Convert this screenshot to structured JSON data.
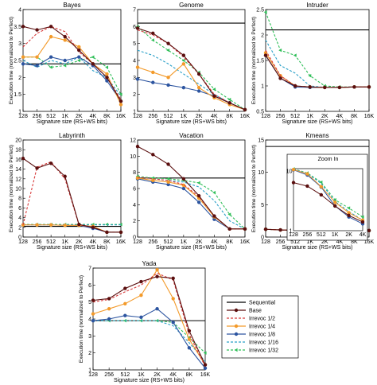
{
  "figure": {
    "x_ticks": [
      "128",
      "256",
      "512",
      "1K",
      "2K",
      "4K",
      "8K",
      "16K"
    ],
    "inset_x_ticks": [
      "128",
      "256",
      "512",
      "1K",
      "2K",
      "4K"
    ],
    "inset_title": "Zoom In",
    "legend": [
      "Sequential",
      "Base",
      "Irrevoc 1/2",
      "Irrevoc 1/4",
      "Irrevoc 1/8",
      "Irrevoc 1/16",
      "Irrevoc 1/32"
    ],
    "colors": {
      "Sequential": "#000000",
      "Base": "#5a0f0f",
      "Irrevoc 1/2": "#d83a3a",
      "Irrevoc 1/4": "#f39a2a",
      "Irrevoc 1/8": "#2d55a0",
      "Irrevoc 1/16": "#2aa0c8",
      "Irrevoc 1/32": "#2fbf58"
    }
  },
  "chart_data": [
    {
      "type": "line",
      "title": "Bayes",
      "xlabel": "Signature size (RS+WS bits)",
      "ylabel": "Execution time (normalized to Perfect)",
      "x": [
        "128",
        "256",
        "512",
        "1K",
        "2K",
        "4K",
        "8K",
        "16K"
      ],
      "ylim": [
        1,
        4
      ],
      "y_ticks": [
        "1",
        "1.5",
        "2",
        "2.5",
        "3",
        "3.5",
        "4"
      ],
      "sequential": 2.4,
      "series": [
        {
          "name": "Base",
          "values": [
            3.5,
            3.4,
            3.5,
            3.2,
            2.8,
            2.4,
            2.0,
            1.3
          ]
        },
        {
          "name": "Irrevoc 1/2",
          "values": [
            2.9,
            3.3,
            3.5,
            3.35,
            2.75,
            2.4,
            2.0,
            1.35
          ]
        },
        {
          "name": "Irrevoc 1/4",
          "values": [
            2.6,
            2.6,
            3.2,
            3.1,
            2.9,
            2.4,
            2.1,
            1.2
          ]
        },
        {
          "name": "Irrevoc 1/8",
          "values": [
            2.4,
            2.35,
            2.6,
            2.5,
            2.6,
            2.35,
            1.9,
            1.3
          ]
        },
        {
          "name": "Irrevoc 1/16",
          "values": [
            2.5,
            2.3,
            2.5,
            2.4,
            2.6,
            2.2,
            2.0,
            1.45
          ]
        },
        {
          "name": "Irrevoc 1/32",
          "values": [
            2.6,
            2.6,
            2.3,
            2.35,
            2.5,
            2.6,
            2.3,
            1.5
          ]
        }
      ]
    },
    {
      "type": "line",
      "title": "Genome",
      "xlabel": "Signature size (RS+WS bits)",
      "ylabel": "",
      "x": [
        "128",
        "256",
        "512",
        "1K",
        "2K",
        "4K",
        "8K",
        "16K"
      ],
      "ylim": [
        1,
        7
      ],
      "y_ticks": [
        "1",
        "2",
        "3",
        "4",
        "5",
        "6",
        "7"
      ],
      "sequential": 6.2,
      "series": [
        {
          "name": "Base",
          "values": [
            5.9,
            5.6,
            5.0,
            4.3,
            3.2,
            1.9,
            1.5,
            1.1
          ]
        },
        {
          "name": "Irrevoc 1/2",
          "values": [
            5.8,
            5.5,
            5.0,
            4.2,
            3.2,
            2.0,
            1.5,
            1.1
          ]
        },
        {
          "name": "Irrevoc 1/4",
          "values": [
            3.6,
            3.3,
            3.0,
            3.8,
            2.4,
            1.8,
            1.4,
            1.1
          ]
        },
        {
          "name": "Irrevoc 1/8",
          "values": [
            2.9,
            2.7,
            2.55,
            2.4,
            2.2,
            1.9,
            1.5,
            1.1
          ]
        },
        {
          "name": "Irrevoc 1/16",
          "values": [
            4.6,
            4.3,
            3.8,
            3.2,
            2.6,
            2.0,
            1.5,
            1.1
          ]
        },
        {
          "name": "Irrevoc 1/32",
          "values": [
            6.0,
            5.2,
            4.6,
            4.0,
            3.3,
            2.3,
            1.7,
            1.1
          ]
        }
      ]
    },
    {
      "type": "line",
      "title": "Intruder",
      "xlabel": "Signature size (RS+WS bits)",
      "ylabel": "Execution time (normalized to Perfect)",
      "x": [
        "128",
        "256",
        "512",
        "1K",
        "2K",
        "4K",
        "8K",
        "16K"
      ],
      "ylim": [
        0.5,
        2.5
      ],
      "y_ticks": [
        "0.5",
        "1",
        "1.5",
        "2",
        "2.5"
      ],
      "sequential": 2.1,
      "series": [
        {
          "name": "Base",
          "values": [
            1.6,
            1.15,
            1.0,
            0.98,
            0.97,
            0.97,
            0.98,
            0.98
          ]
        },
        {
          "name": "Irrevoc 1/2",
          "values": [
            1.7,
            1.2,
            1.0,
            0.98,
            0.97,
            0.97,
            0.98,
            0.98
          ]
        },
        {
          "name": "Irrevoc 1/4",
          "values": [
            1.65,
            1.2,
            1.0,
            0.98,
            0.97,
            0.97,
            0.98,
            0.98
          ]
        },
        {
          "name": "Irrevoc 1/8",
          "values": [
            1.6,
            1.15,
            0.98,
            0.97,
            0.97,
            0.97,
            0.98,
            0.98
          ]
        },
        {
          "name": "Irrevoc 1/16",
          "values": [
            1.9,
            1.4,
            1.25,
            1.0,
            0.97,
            0.97,
            0.98,
            0.98
          ]
        },
        {
          "name": "Irrevoc 1/32",
          "values": [
            2.45,
            1.7,
            1.6,
            1.2,
            1.0,
            0.98,
            0.98,
            0.98
          ]
        }
      ]
    },
    {
      "type": "line",
      "title": "Labyrinth",
      "xlabel": "Signature size (RS+WS bits)",
      "ylabel": "Execution time (normalized to Perfect)",
      "x": [
        "128",
        "256",
        "512",
        "1K",
        "2K",
        "4K",
        "8K",
        "16K"
      ],
      "ylim": [
        0,
        20
      ],
      "y_ticks": [
        "0",
        "2",
        "4",
        "6",
        "8",
        "10",
        "12",
        "14",
        "16",
        "18",
        "20"
      ],
      "sequential": 2.2,
      "series": [
        {
          "name": "Base",
          "values": [
            16.2,
            14.2,
            15.2,
            12.5,
            2.6,
            2.0,
            1.0,
            1.0
          ]
        },
        {
          "name": "Irrevoc 1/2",
          "values": [
            2.5,
            14.4,
            15.5,
            12.0,
            2.5,
            2.0,
            1.0,
            1.0
          ]
        },
        {
          "name": "Irrevoc 1/4",
          "values": [
            2.5,
            2.5,
            2.5,
            2.4,
            2.4,
            2.2,
            1.0,
            1.0
          ]
        },
        {
          "name": "Irrevoc 1/8",
          "values": [
            2.5,
            2.5,
            2.5,
            2.4,
            2.4,
            1.8,
            1.0,
            1.0
          ]
        },
        {
          "name": "Irrevoc 1/16",
          "values": [
            2.5,
            2.5,
            2.5,
            2.5,
            2.5,
            2.5,
            2.5,
            2.5
          ]
        },
        {
          "name": "Irrevoc 1/32",
          "values": [
            2.6,
            2.6,
            2.6,
            2.6,
            2.6,
            2.6,
            2.6,
            2.6
          ]
        }
      ]
    },
    {
      "type": "line",
      "title": "Vacation",
      "xlabel": "Signature size (RS+WS bits)",
      "ylabel": "",
      "x": [
        "128",
        "256",
        "512",
        "1K",
        "2K",
        "4K",
        "8K",
        "16K"
      ],
      "ylim": [
        0,
        12
      ],
      "y_ticks": [
        "0",
        "2",
        "4",
        "6",
        "8",
        "10",
        "12"
      ],
      "sequential": 7.3,
      "series": [
        {
          "name": "Base",
          "values": [
            11.2,
            10.2,
            9.0,
            7.2,
            5.1,
            2.6,
            1.0,
            1.0
          ]
        },
        {
          "name": "Irrevoc 1/2",
          "values": [
            7.4,
            7.2,
            7.0,
            6.5,
            5.0,
            2.6,
            1.0,
            1.0
          ]
        },
        {
          "name": "Irrevoc 1/4",
          "values": [
            7.3,
            7.0,
            6.8,
            6.4,
            4.8,
            2.5,
            1.0,
            1.0
          ]
        },
        {
          "name": "Irrevoc 1/8",
          "values": [
            7.2,
            6.8,
            6.5,
            6.0,
            4.3,
            2.2,
            1.0,
            1.0
          ]
        },
        {
          "name": "Irrevoc 1/16",
          "values": [
            7.4,
            7.2,
            7.0,
            6.8,
            6.2,
            4.5,
            2.0,
            1.0
          ]
        },
        {
          "name": "Irrevoc 1/32",
          "values": [
            7.5,
            7.3,
            7.2,
            7.0,
            6.7,
            5.5,
            2.8,
            1.0
          ]
        }
      ]
    },
    {
      "type": "line",
      "title": "Kmeans",
      "xlabel": "Signature size (RS+WS bits)",
      "ylabel": "Execution time (normalized to Perfect)",
      "x": [
        "128",
        "256",
        "512",
        "1K",
        "2K",
        "4K",
        "8K",
        "16K"
      ],
      "ylim": [
        0,
        15
      ],
      "y_ticks": [
        "0",
        "5",
        "10",
        "15"
      ],
      "sequential": 14.0,
      "series": [
        {
          "name": "Base",
          "values": [
            1.2,
            1.1,
            1.05,
            1.0,
            1.0,
            1.0,
            1.0,
            1.0
          ]
        },
        {
          "name": "Irrevoc 1/2",
          "values": [
            1.2,
            1.1,
            1.05,
            1.0,
            1.0,
            1.0,
            1.0,
            1.0
          ]
        },
        {
          "name": "Irrevoc 1/4",
          "values": [
            1.2,
            1.1,
            1.05,
            1.0,
            1.0,
            1.0,
            1.0,
            1.0
          ]
        },
        {
          "name": "Irrevoc 1/8",
          "values": [
            1.2,
            1.1,
            1.05,
            1.0,
            1.0,
            1.0,
            1.0,
            1.0
          ]
        },
        {
          "name": "Irrevoc 1/16",
          "values": [
            1.2,
            1.1,
            1.05,
            1.0,
            1.0,
            1.0,
            1.0,
            1.0
          ]
        },
        {
          "name": "Irrevoc 1/32",
          "values": [
            1.2,
            1.1,
            1.05,
            1.0,
            1.0,
            1.0,
            1.0,
            1.0
          ]
        }
      ],
      "inset": {
        "title": "Zoom In",
        "x": [
          "128",
          "256",
          "512",
          "1K",
          "2K",
          "4K"
        ],
        "ylim": [
          1,
          11
        ],
        "y_ticks": [
          "1",
          "10"
        ],
        "series": [
          {
            "name": "Base",
            "values": [
              6.4,
              5.6,
              4.0,
              2.6,
              1.8,
              1.4
            ]
          },
          {
            "name": "Irrevoc 1/4",
            "values": [
              10.6,
              9.0,
              5.5,
              3.0,
              2.0,
              1.5
            ]
          },
          {
            "name": "Irrevoc 1/8",
            "values": [
              10.5,
              8.6,
              5.4,
              2.6,
              1.7,
              1.3
            ]
          },
          {
            "name": "Irrevoc 1/16",
            "values": [
              10.8,
              9.1,
              6.2,
              3.1,
              2.1,
              1.5
            ]
          },
          {
            "name": "Irrevoc 1/32",
            "values": [
              10.9,
              9.3,
              6.5,
              3.3,
              2.4,
              1.7
            ]
          }
        ]
      }
    },
    {
      "type": "line",
      "title": "Yada",
      "xlabel": "Signature size (RS+WS bits)",
      "ylabel": "Execution time (normalized to Perfect)",
      "x": [
        "128",
        "256",
        "512",
        "1K",
        "2K",
        "4K",
        "8K",
        "16K"
      ],
      "ylim": [
        1,
        7
      ],
      "y_ticks": [
        "1",
        "2",
        "3",
        "4",
        "5",
        "6",
        "7"
      ],
      "sequential": 3.9,
      "series": [
        {
          "name": "Base",
          "values": [
            5.1,
            5.2,
            5.8,
            6.2,
            6.5,
            6.4,
            3.3,
            1.3
          ]
        },
        {
          "name": "Irrevoc 1/2",
          "values": [
            5.0,
            5.15,
            5.6,
            6.0,
            6.7,
            6.3,
            3.1,
            1.2
          ]
        },
        {
          "name": "Irrevoc 1/4",
          "values": [
            4.3,
            4.6,
            4.9,
            5.4,
            6.9,
            5.2,
            2.8,
            1.3
          ]
        },
        {
          "name": "Irrevoc 1/8",
          "values": [
            3.9,
            4.0,
            4.2,
            4.1,
            4.6,
            3.8,
            2.3,
            1.1
          ]
        },
        {
          "name": "Irrevoc 1/16",
          "values": [
            3.9,
            3.9,
            3.9,
            3.9,
            3.9,
            3.6,
            2.6,
            1.5
          ]
        },
        {
          "name": "Irrevoc 1/32",
          "values": [
            3.9,
            3.9,
            3.9,
            3.9,
            3.9,
            3.8,
            2.9,
            2.0
          ]
        }
      ]
    }
  ]
}
